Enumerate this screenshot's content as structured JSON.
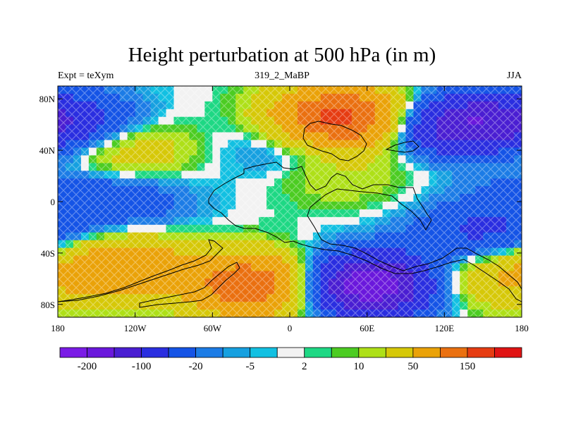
{
  "chart_data": {
    "type": "heatmap",
    "title": "Height perturbation at 500 hPa (in m)",
    "left_string": "Expt = teXym",
    "center_string": "319_2_MaBP",
    "right_string": "JJA",
    "xlim": [
      -180,
      180
    ],
    "ylim": [
      -90,
      90
    ],
    "x_ticks": [
      {
        "value": -180,
        "label": "180"
      },
      {
        "value": -120,
        "label": "120W"
      },
      {
        "value": -60,
        "label": "60W"
      },
      {
        "value": 0,
        "label": "0"
      },
      {
        "value": 60,
        "label": "60E"
      },
      {
        "value": 120,
        "label": "120E"
      },
      {
        "value": 180,
        "label": "180"
      }
    ],
    "y_ticks": [
      {
        "value": 80,
        "label": "80N"
      },
      {
        "value": 40,
        "label": "40N"
      },
      {
        "value": 0,
        "label": "0"
      },
      {
        "value": -40,
        "label": "40S"
      },
      {
        "value": -80,
        "label": "80S"
      }
    ],
    "contour_levels": [
      -200,
      -150,
      -100,
      -50,
      -20,
      -10,
      -5,
      -2,
      2,
      5,
      10,
      20,
      50,
      100,
      150,
      200
    ],
    "colors": [
      "#7a1be6",
      "#6a18dc",
      "#4a1ed2",
      "#2a2ee0",
      "#1554e6",
      "#1c7ce6",
      "#16a0e0",
      "#12c0e2",
      "#f2f2f2",
      "#1ed884",
      "#4ccc22",
      "#aee018",
      "#d6c808",
      "#eaa208",
      "#ea7010",
      "#e63c12",
      "#e01414"
    ],
    "colorbar_labels": [
      {
        "level": -200,
        "label": "-200"
      },
      {
        "level": -100,
        "label": "-100"
      },
      {
        "level": -20,
        "label": "-20"
      },
      {
        "level": -5,
        "label": "-5"
      },
      {
        "level": 2,
        "label": "2"
      },
      {
        "level": 10,
        "label": "10"
      },
      {
        "level": 50,
        "label": "50"
      },
      {
        "level": 150,
        "label": "150"
      }
    ],
    "features": [
      {
        "lon": 40,
        "lat": 65,
        "amplitude": 180
      },
      {
        "lon": -25,
        "lat": -65,
        "amplitude": 150
      },
      {
        "lon": -130,
        "lat": -50,
        "amplitude": 90
      },
      {
        "lon": -130,
        "lat": 40,
        "amplitude": 50
      },
      {
        "lon": 150,
        "lat": 40,
        "amplitude": 40
      },
      {
        "lon": 150,
        "lat": -60,
        "amplitude": 50
      },
      {
        "lon": 40,
        "lat": 20,
        "amplitude": 20
      },
      {
        "lon": 60,
        "lat": -65,
        "amplitude": -200
      },
      {
        "lon": 130,
        "lat": 58,
        "amplitude": -150
      },
      {
        "lon": -170,
        "lat": 60,
        "amplitude": -80
      },
      {
        "lon": -130,
        "lat": 0,
        "amplitude": -40
      },
      {
        "lon": 150,
        "lat": -25,
        "amplitude": -60
      },
      {
        "lon": 170,
        "lat": 20,
        "amplitude": -25
      },
      {
        "lon": 0,
        "lat": 45,
        "amplitude": -30
      }
    ]
  }
}
